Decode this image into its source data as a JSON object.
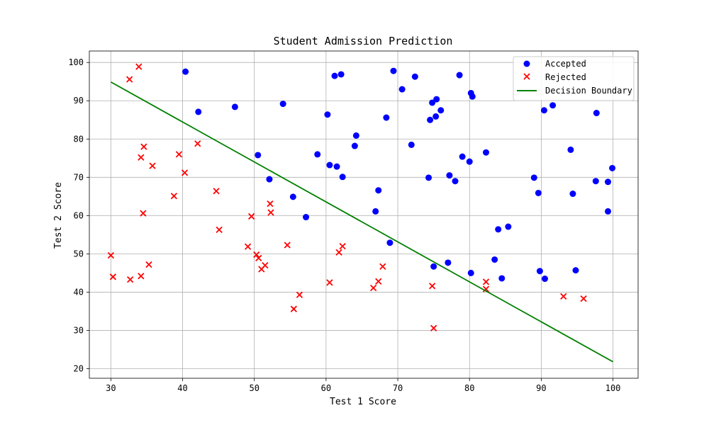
{
  "chart_data": {
    "type": "scatter",
    "title": "Student Admission Prediction",
    "xlabel": "Test 1 Score",
    "ylabel": "Test 2 Score",
    "xlim": [
      27,
      103.5
    ],
    "ylim": [
      17.5,
      103
    ],
    "xticks": [
      30,
      40,
      50,
      60,
      70,
      80,
      90,
      100
    ],
    "yticks": [
      20,
      30,
      40,
      50,
      60,
      70,
      80,
      90,
      100
    ],
    "grid": true,
    "legend_position": "top-right",
    "series": [
      {
        "name": "Accepted",
        "marker": "circle",
        "color": "#0000ff",
        "points": [
          [
            40.4,
            97.6
          ],
          [
            42.2,
            87.1
          ],
          [
            47.3,
            88.4
          ],
          [
            54.0,
            89.2
          ],
          [
            61.2,
            96.5
          ],
          [
            62.1,
            96.9
          ],
          [
            69.4,
            97.8
          ],
          [
            70.6,
            93.0
          ],
          [
            72.4,
            96.3
          ],
          [
            78.6,
            96.7
          ],
          [
            74.8,
            89.5
          ],
          [
            75.4,
            90.4
          ],
          [
            76.0,
            87.5
          ],
          [
            74.5,
            85.0
          ],
          [
            75.3,
            85.9
          ],
          [
            80.2,
            92.0
          ],
          [
            80.4,
            91.1
          ],
          [
            60.2,
            86.4
          ],
          [
            68.4,
            85.6
          ],
          [
            64.2,
            80.9
          ],
          [
            64.0,
            78.2
          ],
          [
            71.9,
            78.5
          ],
          [
            50.5,
            75.8
          ],
          [
            58.8,
            76.0
          ],
          [
            60.5,
            73.2
          ],
          [
            61.5,
            72.8
          ],
          [
            62.3,
            70.1
          ],
          [
            52.1,
            69.5
          ],
          [
            55.4,
            64.9
          ],
          [
            57.2,
            59.6
          ],
          [
            67.3,
            66.6
          ],
          [
            66.9,
            61.1
          ],
          [
            74.3,
            69.9
          ],
          [
            77.2,
            70.5
          ],
          [
            78.0,
            69.0
          ],
          [
            79.0,
            75.4
          ],
          [
            80.0,
            74.1
          ],
          [
            82.3,
            76.5
          ],
          [
            68.9,
            52.9
          ],
          [
            75.0,
            46.7
          ],
          [
            77.0,
            47.7
          ],
          [
            80.2,
            45.0
          ],
          [
            83.5,
            48.5
          ],
          [
            84.0,
            56.4
          ],
          [
            85.4,
            57.1
          ],
          [
            84.5,
            43.6
          ],
          [
            89.0,
            69.9
          ],
          [
            89.6,
            65.9
          ],
          [
            90.4,
            87.5
          ],
          [
            91.6,
            88.8
          ],
          [
            94.1,
            77.2
          ],
          [
            94.4,
            65.7
          ],
          [
            97.7,
            86.8
          ],
          [
            97.6,
            69.0
          ],
          [
            99.3,
            68.8
          ],
          [
            99.9,
            72.4
          ],
          [
            99.3,
            61.1
          ],
          [
            89.8,
            45.5
          ],
          [
            90.5,
            43.5
          ],
          [
            94.8,
            45.7
          ]
        ]
      },
      {
        "name": "Rejected",
        "marker": "x",
        "color": "#ff0000",
        "points": [
          [
            33.9,
            98.9
          ],
          [
            32.6,
            95.6
          ],
          [
            34.6,
            78.0
          ],
          [
            34.2,
            75.2
          ],
          [
            35.8,
            73.0
          ],
          [
            39.5,
            76.0
          ],
          [
            40.3,
            71.2
          ],
          [
            42.1,
            78.8
          ],
          [
            38.8,
            65.1
          ],
          [
            34.5,
            60.6
          ],
          [
            44.7,
            66.4
          ],
          [
            45.1,
            56.3
          ],
          [
            49.6,
            59.8
          ],
          [
            52.2,
            63.1
          ],
          [
            52.3,
            60.8
          ],
          [
            30.0,
            49.6
          ],
          [
            30.3,
            44.0
          ],
          [
            32.7,
            43.3
          ],
          [
            34.2,
            44.2
          ],
          [
            35.3,
            47.2
          ],
          [
            49.1,
            51.9
          ],
          [
            50.3,
            49.8
          ],
          [
            50.6,
            48.9
          ],
          [
            51.0,
            46.0
          ],
          [
            51.5,
            47.0
          ],
          [
            54.6,
            52.3
          ],
          [
            56.3,
            39.3
          ],
          [
            55.5,
            35.6
          ],
          [
            60.5,
            42.5
          ],
          [
            61.8,
            50.4
          ],
          [
            62.3,
            52.0
          ],
          [
            66.6,
            41.1
          ],
          [
            67.3,
            42.8
          ],
          [
            67.9,
            46.7
          ],
          [
            74.8,
            41.6
          ],
          [
            75.0,
            30.6
          ],
          [
            82.3,
            42.7
          ],
          [
            82.3,
            40.8
          ],
          [
            93.1,
            38.9
          ],
          [
            95.9,
            38.3
          ]
        ]
      },
      {
        "name": "Decision Boundary",
        "marker": "line",
        "color": "#008000",
        "points": [
          [
            30,
            94.9
          ],
          [
            100,
            21.8
          ]
        ]
      }
    ]
  }
}
